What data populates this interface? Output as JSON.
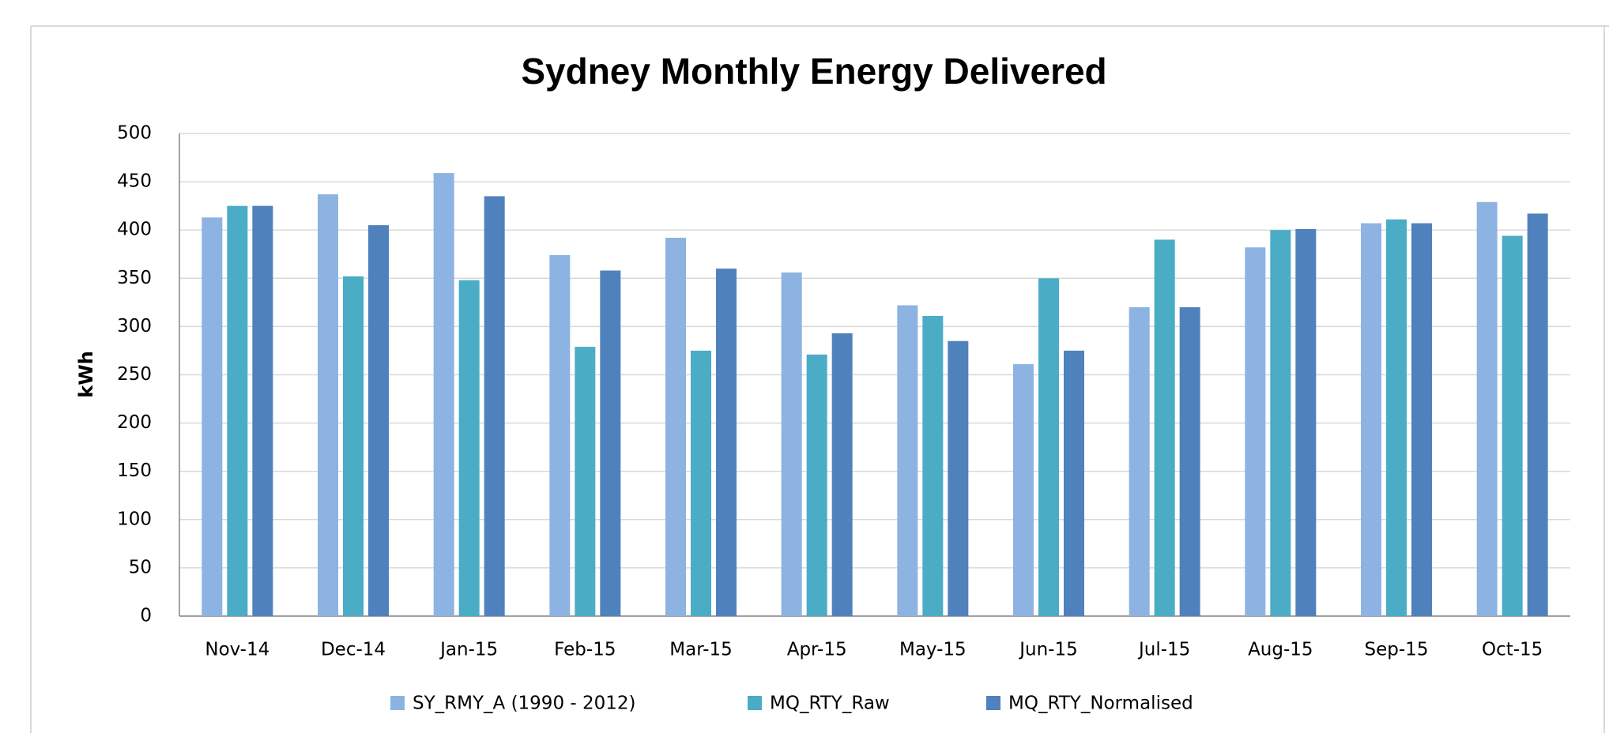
{
  "chart_data": {
    "type": "bar",
    "title": "Sydney Monthly Energy Delivered",
    "y_label": "kWh",
    "categories": [
      "Nov-14",
      "Dec-14",
      "Jan-15",
      "Feb-15",
      "Mar-15",
      "Apr-15",
      "May-15",
      "Jun-15",
      "Jul-15",
      "Aug-15",
      "Sep-15",
      "Oct-15"
    ],
    "series": [
      {
        "name": "SY_RMY_A (1990 - 2012)",
        "color": "#8db3e2",
        "values": [
          413,
          437,
          459,
          374,
          392,
          356,
          322,
          261,
          320,
          382,
          407,
          429
        ]
      },
      {
        "name": "MQ_RTY_Raw",
        "color": "#4bacc6",
        "values": [
          425,
          352,
          348,
          279,
          275,
          271,
          311,
          350,
          390,
          400,
          411,
          394
        ]
      },
      {
        "name": "MQ_RTY_Normalised",
        "color": "#4f81bd",
        "values": [
          425,
          405,
          435,
          358,
          360,
          293,
          285,
          275,
          320,
          401,
          407,
          417
        ]
      }
    ],
    "ylim": [
      0,
      500
    ],
    "yticks": [
      0,
      50,
      100,
      150,
      200,
      250,
      300,
      350,
      400,
      450,
      500
    ],
    "grid": true,
    "legend": "bottom"
  }
}
